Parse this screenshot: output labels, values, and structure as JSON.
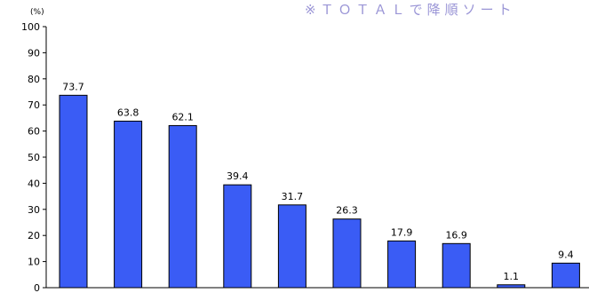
{
  "note": "※ＴＯＴＡＬで降順ソート",
  "chart_data": {
    "type": "bar",
    "ylabel": "(%)",
    "ylim": [
      0,
      100
    ],
    "yticks": [
      0,
      10,
      20,
      30,
      40,
      50,
      60,
      70,
      80,
      90,
      100
    ],
    "grid": false,
    "bar_color": "#3a5cf5",
    "values": [
      73.7,
      63.8,
      62.1,
      39.4,
      31.7,
      26.3,
      17.9,
      16.9,
      1.1,
      9.4
    ],
    "value_labels": [
      "73.7",
      "63.8",
      "62.1",
      "39.4",
      "31.7",
      "26.3",
      "17.9",
      "16.9",
      "1.1",
      "9.4"
    ]
  }
}
